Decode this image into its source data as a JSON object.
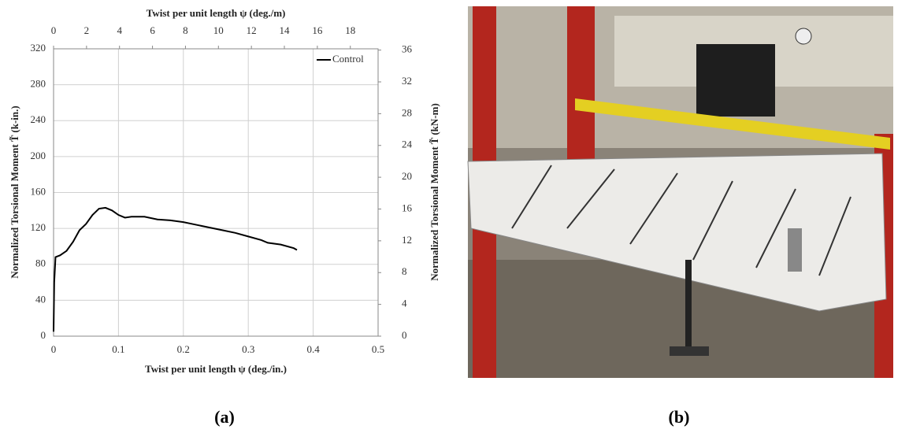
{
  "chart_data": {
    "type": "line",
    "xlabel": "Twist per unit length ψ (deg./in.)",
    "x2label": "Twist per unit length ψ (deg./m)",
    "ylabel": "Normalized Torsional Moment T̃ (k-in.)",
    "y2label": "Normalized Torsional Moment T̃ (kN-m)",
    "x": [
      0,
      0.001,
      0.003,
      0.01,
      0.02,
      0.03,
      0.04,
      0.05,
      0.06,
      0.07,
      0.08,
      0.09,
      0.1,
      0.11,
      0.12,
      0.14,
      0.16,
      0.18,
      0.2,
      0.22,
      0.24,
      0.26,
      0.28,
      0.3,
      0.32,
      0.33,
      0.35,
      0.37,
      0.375
    ],
    "series": [
      {
        "name": "Control",
        "color": "#000000",
        "values": [
          5,
          60,
          88,
          90,
          95,
          105,
          118,
          125,
          135,
          142,
          143,
          140,
          135,
          132,
          133,
          133,
          130,
          129,
          127,
          124,
          121,
          118,
          115,
          111,
          107,
          104,
          102,
          98,
          96
        ]
      }
    ],
    "xlim": [
      0,
      0.5
    ],
    "xticks": [
      0,
      0.1,
      0.2,
      0.3,
      0.4,
      0.5
    ],
    "x2lim": [
      0,
      19.685
    ],
    "x2ticks": [
      0,
      2,
      4,
      6,
      8,
      10,
      12,
      14,
      16,
      18
    ],
    "ylim": [
      0,
      320
    ],
    "yticks": [
      0,
      40,
      80,
      120,
      160,
      200,
      240,
      280,
      320
    ],
    "y2lim": [
      0,
      36.16
    ],
    "y2ticks": [
      0,
      4,
      8,
      12,
      16,
      20,
      24,
      28,
      32,
      36
    ],
    "grid": true,
    "legend": "upper right"
  },
  "panels": {
    "a": "(a)",
    "b": "(b)"
  }
}
